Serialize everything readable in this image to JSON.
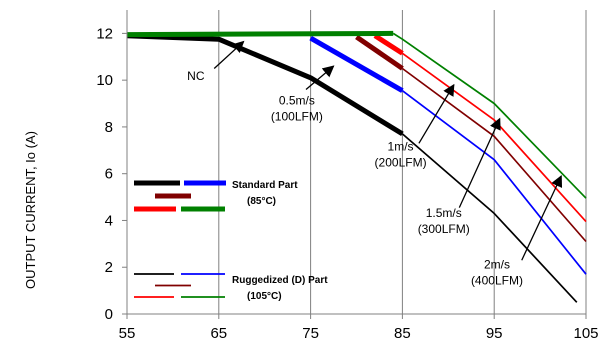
{
  "chart_data": {
    "type": "line",
    "title": "",
    "xlabel": "",
    "ylabel": "OUTPUT CURRENT, Io  (A)",
    "xlim": [
      55,
      105
    ],
    "ylim": [
      0,
      13
    ],
    "x_ticks": [
      "55",
      "65",
      "75",
      "85",
      "95",
      "105"
    ],
    "y_ticks": [
      "0",
      "2",
      "4",
      "6",
      "8",
      "10",
      "12"
    ],
    "grid": "vertical",
    "series": [
      {
        "group": "standard",
        "color": "#000000",
        "points": [
          [
            55,
            11.9
          ],
          [
            65,
            11.75
          ],
          [
            75,
            10.1
          ],
          [
            85,
            7.7
          ]
        ]
      },
      {
        "group": "standard",
        "color": "#0000ff",
        "points": [
          [
            75,
            11.8
          ],
          [
            85,
            9.55
          ]
        ]
      },
      {
        "group": "standard",
        "color": "#800000",
        "points": [
          [
            80,
            11.85
          ],
          [
            85,
            10.5
          ]
        ]
      },
      {
        "group": "standard",
        "color": "#ff0000",
        "points": [
          [
            82,
            11.9
          ],
          [
            85,
            11.15
          ]
        ]
      },
      {
        "group": "standard",
        "color": "#008000",
        "points": [
          [
            55,
            11.95
          ],
          [
            84,
            12.0
          ]
        ]
      },
      {
        "group": "ruggedized",
        "color": "#000000",
        "points": [
          [
            85,
            7.7
          ],
          [
            95,
            4.3
          ],
          [
            104,
            0.5
          ]
        ]
      },
      {
        "group": "ruggedized",
        "color": "#0000ff",
        "points": [
          [
            85,
            9.55
          ],
          [
            95,
            6.6
          ],
          [
            105,
            1.7
          ]
        ]
      },
      {
        "group": "ruggedized",
        "color": "#800000",
        "points": [
          [
            85,
            10.5
          ],
          [
            95,
            7.6
          ],
          [
            105,
            3.1
          ]
        ]
      },
      {
        "group": "ruggedized",
        "color": "#ff0000",
        "points": [
          [
            85,
            11.15
          ],
          [
            95,
            8.3
          ],
          [
            105,
            3.95
          ]
        ]
      },
      {
        "group": "ruggedized",
        "color": "#008000",
        "points": [
          [
            84,
            12.0
          ],
          [
            85,
            11.75
          ],
          [
            95,
            9.0
          ],
          [
            105,
            4.95
          ]
        ]
      }
    ],
    "annotations": [
      {
        "lines": [
          "NC"
        ],
        "text_at": [
          62.5,
          10.0
        ],
        "arrow_from": [
          64.5,
          10.5
        ],
        "arrow_to": [
          67.7,
          11.65
        ]
      },
      {
        "lines": [
          "0.5m/s",
          "(100LFM)"
        ],
        "text_at": [
          73.5,
          8.95
        ],
        "arrow_from": [
          74.5,
          9.6
        ],
        "arrow_to": [
          77.5,
          10.6
        ]
      },
      {
        "lines": [
          "1m/s",
          "(200LFM)"
        ],
        "text_at": [
          84.8,
          7.0
        ],
        "arrow_from": [
          86.8,
          7.3
        ],
        "arrow_to": [
          90.6,
          9.8
        ]
      },
      {
        "lines": [
          "1.5m/s",
          "(300LFM)"
        ],
        "text_at": [
          89.5,
          4.15
        ],
        "arrow_from": [
          91.2,
          4.55
        ],
        "arrow_to": [
          95.6,
          8.35
        ]
      },
      {
        "lines": [
          "2m/s",
          "(400LFM)"
        ],
        "text_at": [
          95.3,
          1.95
        ],
        "arrow_from": [
          98.0,
          2.3
        ],
        "arrow_to": [
          102.3,
          5.9
        ]
      }
    ],
    "legend": {
      "placement": "left",
      "groups": [
        {
          "name": "standard",
          "lines": [
            "Standard Part",
            "(85°C)"
          ],
          "thick": true
        },
        {
          "name": "ruggedized",
          "lines": [
            "Ruggedized (D) Part",
            "(105°C)"
          ],
          "thick": false
        }
      ],
      "swatch_colors": [
        "#000000",
        "#0000ff",
        "#800000",
        "#ff0000",
        "#008000"
      ]
    }
  }
}
